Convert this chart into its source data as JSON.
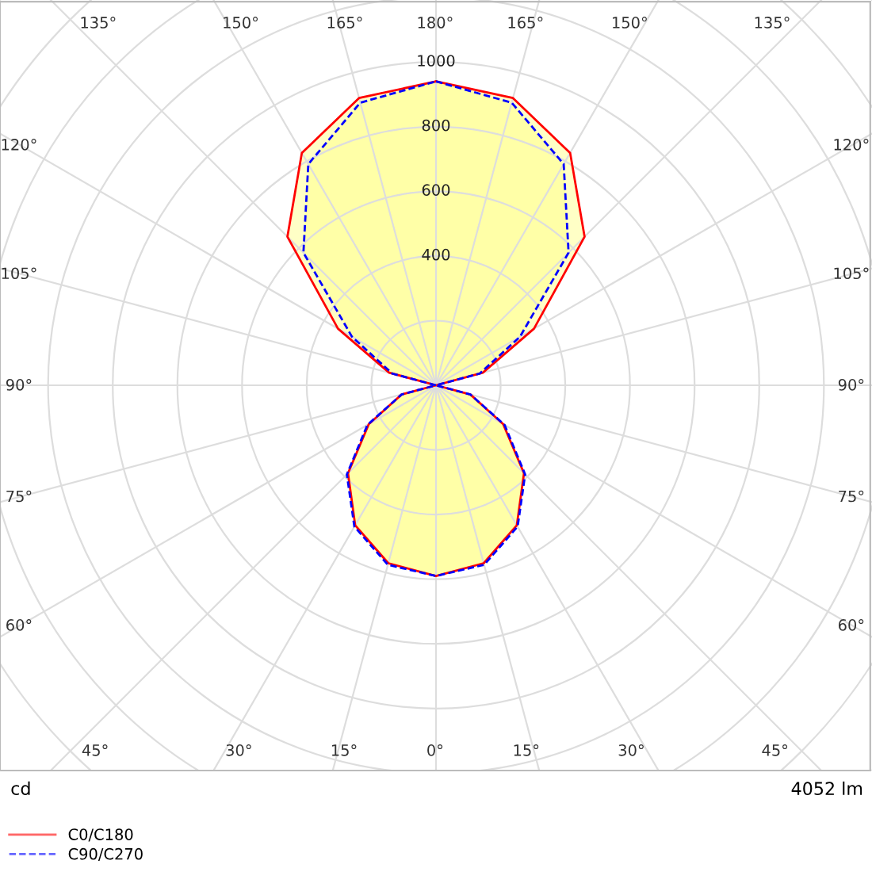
{
  "chart_data": {
    "type": "radar",
    "categories": [
      "180°",
      "165°",
      "150°",
      "135°",
      "120°",
      "105°",
      "90°",
      "75°",
      "60°",
      "45°",
      "30°",
      "15°",
      "0°",
      "15°",
      "30°",
      "45°",
      "60°",
      "75°",
      "90°",
      "105°",
      "120°",
      "135°",
      "150°",
      "165°"
    ],
    "series": [
      {
        "name": "C0/C180",
        "color": "#ff0000",
        "line_style": "solid",
        "values": [
          940,
          920,
          830,
          650,
          350,
          150,
          0,
          110,
          240,
          385,
          500,
          570,
          590,
          570,
          500,
          385,
          240,
          110,
          0,
          150,
          350,
          650,
          830,
          920
        ]
      },
      {
        "name": "C90/C270",
        "color": "#0000ff",
        "line_style": "dashed",
        "values": [
          940,
          905,
          790,
          580,
          300,
          140,
          0,
          110,
          245,
          390,
          505,
          575,
          590,
          575,
          505,
          390,
          245,
          110,
          0,
          140,
          300,
          580,
          790,
          905
        ]
      }
    ],
    "ylim": [
      0,
      1800
    ],
    "yticks": [
      400,
      600,
      800,
      1000
    ],
    "grid": true,
    "legend": "bottom left",
    "annotations": [
      "cd",
      "4052 lm"
    ]
  }
}
